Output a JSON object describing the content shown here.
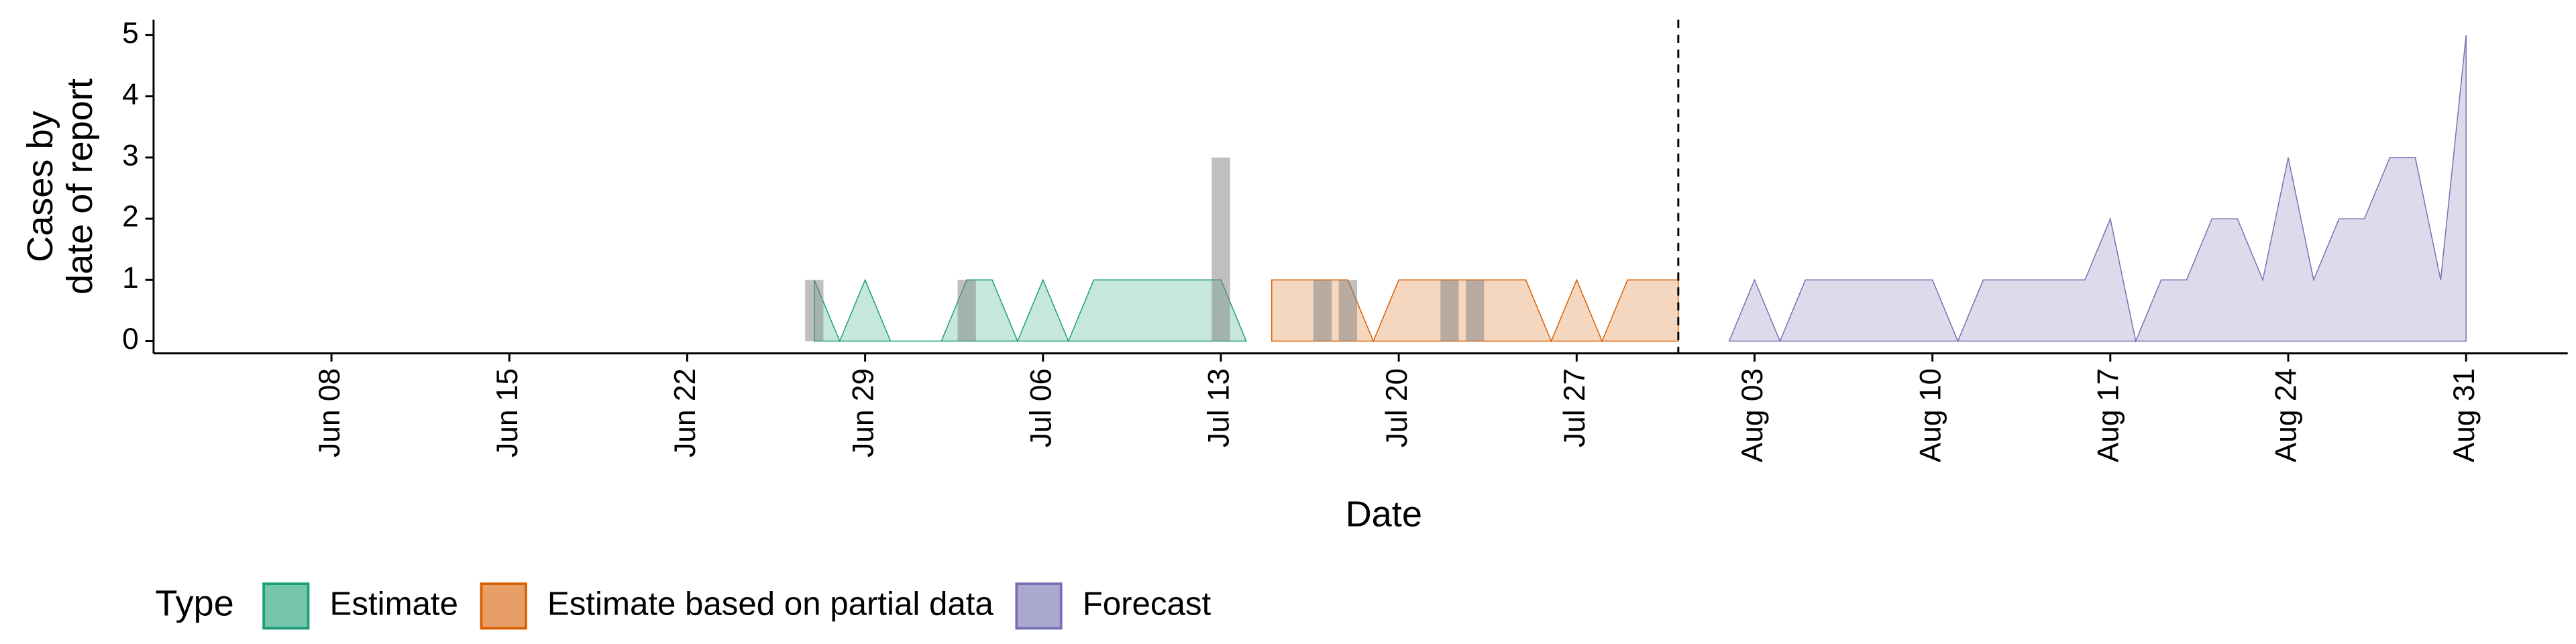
{
  "chart_data": {
    "type": "area",
    "xlabel": "Date",
    "ylabel": [
      "Cases by",
      "date of report"
    ],
    "xlim": [
      "Jun 01",
      "Sep 04"
    ],
    "ylim": [
      -0.2,
      5.25
    ],
    "yticks": [
      0,
      1,
      2,
      3,
      4,
      5
    ],
    "xticks": [
      "Jun 08",
      "Jun 15",
      "Jun 22",
      "Jun 29",
      "Jul 06",
      "Jul 13",
      "Jul 20",
      "Jul 27",
      "Aug 03",
      "Aug 10",
      "Aug 17",
      "Aug 24",
      "Aug 31"
    ],
    "vline": "Jul 31",
    "legend_title": "Type",
    "legend_position": "bottom",
    "bars": {
      "color": "#808080",
      "x": [
        "Jun 27",
        "Jul 03",
        "Jul 13",
        "Jul 17",
        "Jul 18",
        "Jul 22",
        "Jul 23"
      ],
      "values": [
        1,
        1,
        3,
        1,
        1,
        1,
        1
      ]
    },
    "series": [
      {
        "name": "Estimate",
        "color": "#1b9e77",
        "x": [
          "Jun 27",
          "Jun 28",
          "Jun 29",
          "Jun 30",
          "Jul 01",
          "Jul 02",
          "Jul 03",
          "Jul 04",
          "Jul 05",
          "Jul 06",
          "Jul 07",
          "Jul 08",
          "Jul 09",
          "Jul 10",
          "Jul 11",
          "Jul 12",
          "Jul 13",
          "Jul 14"
        ],
        "values": [
          1,
          0,
          1,
          0,
          0,
          0,
          1,
          1,
          0,
          1,
          0,
          1,
          1,
          1,
          1,
          1,
          1,
          0
        ]
      },
      {
        "name": "Estimate based on partial data",
        "color": "#d95f02",
        "x": [
          "Jul 15",
          "Jul 16",
          "Jul 17",
          "Jul 18",
          "Jul 19",
          "Jul 20",
          "Jul 21",
          "Jul 22",
          "Jul 23",
          "Jul 24",
          "Jul 25",
          "Jul 26",
          "Jul 27",
          "Jul 28",
          "Jul 29",
          "Jul 30",
          "Jul 31"
        ],
        "values": [
          1,
          1,
          1,
          1,
          0,
          1,
          1,
          1,
          1,
          1,
          1,
          0,
          1,
          0,
          1,
          1,
          1
        ]
      },
      {
        "name": "Forecast",
        "color": "#7570b3",
        "x": [
          "Aug 02",
          "Aug 03",
          "Aug 04",
          "Aug 05",
          "Aug 06",
          "Aug 07",
          "Aug 08",
          "Aug 09",
          "Aug 10",
          "Aug 11",
          "Aug 12",
          "Aug 13",
          "Aug 14",
          "Aug 15",
          "Aug 16",
          "Aug 17",
          "Aug 18",
          "Aug 19",
          "Aug 20",
          "Aug 21",
          "Aug 22",
          "Aug 23",
          "Aug 24",
          "Aug 25",
          "Aug 26",
          "Aug 27",
          "Aug 28",
          "Aug 29",
          "Aug 30",
          "Aug 31"
        ],
        "values": [
          0,
          1,
          0,
          1,
          1,
          1,
          1,
          1,
          1,
          0,
          1,
          1,
          1,
          1,
          1,
          2,
          0,
          1,
          1,
          2,
          2,
          1,
          3,
          1,
          2,
          2,
          3,
          3,
          1,
          5
        ]
      }
    ]
  }
}
